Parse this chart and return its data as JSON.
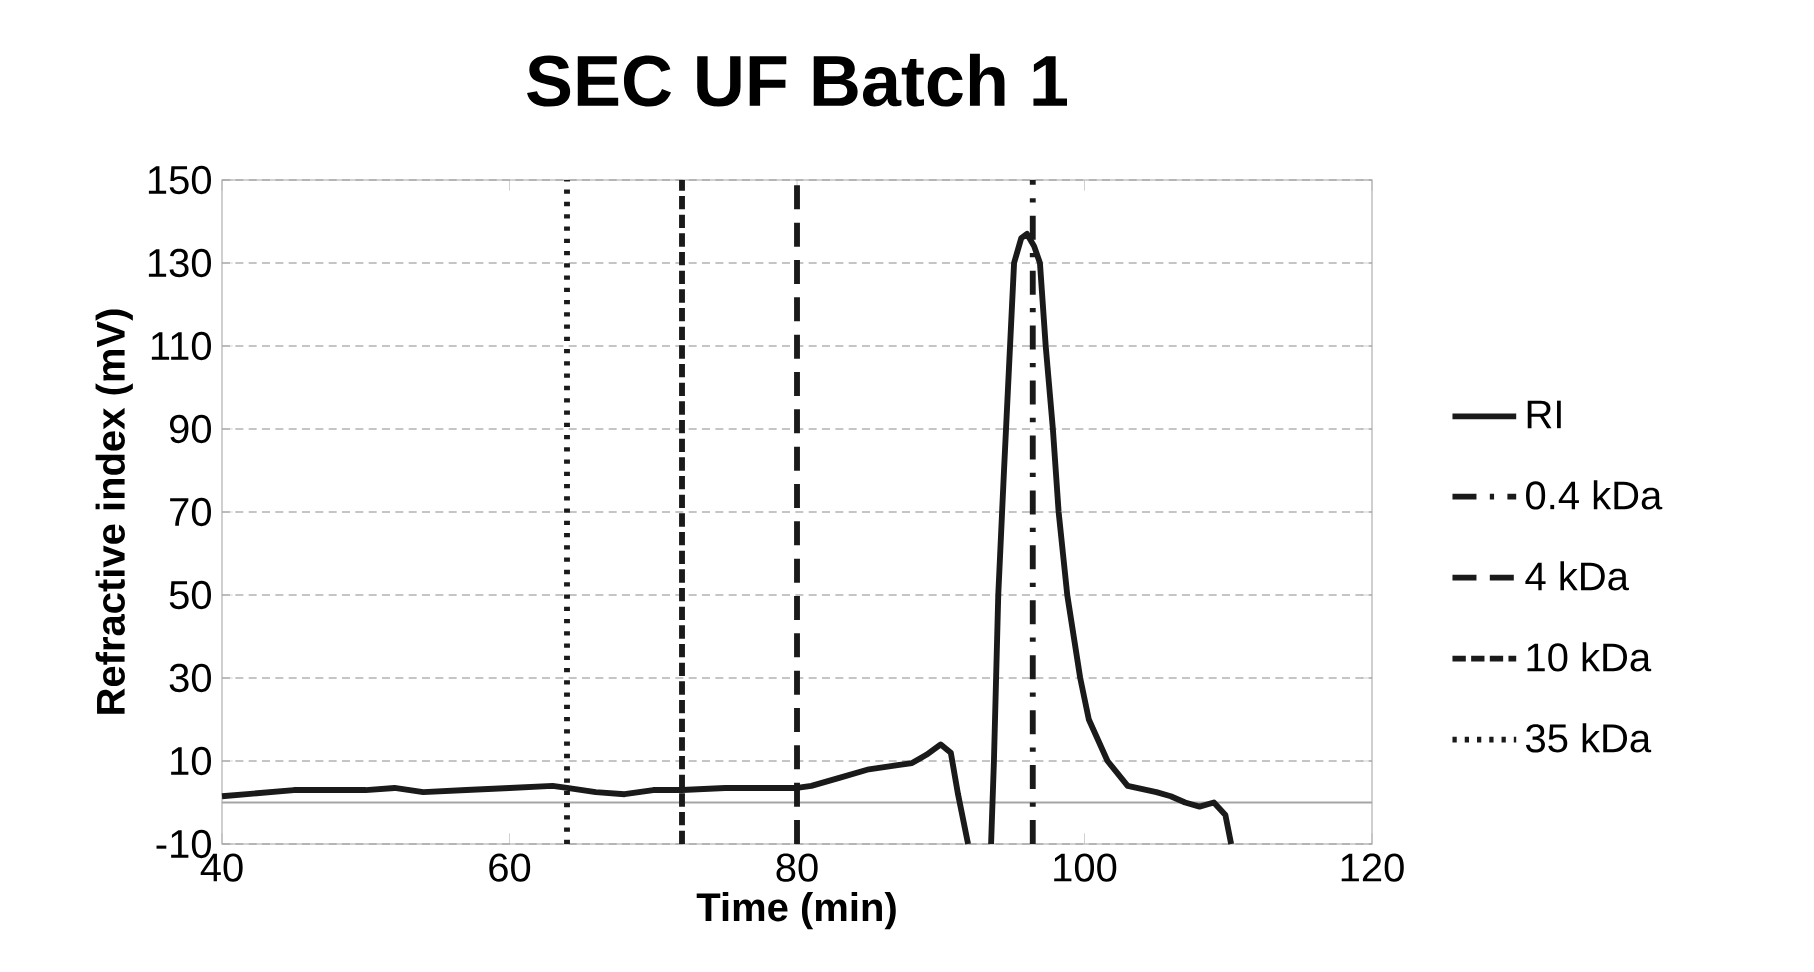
{
  "chart_data": {
    "type": "line",
    "title": "SEC UF Batch 1",
    "xlabel": "Time (min)",
    "ylabel": "Refractive index (mV)",
    "xlim": [
      40,
      120
    ],
    "ylim": [
      -10,
      150
    ],
    "xticks": [
      40,
      60,
      80,
      100,
      120
    ],
    "yticks": [
      -10,
      10,
      30,
      50,
      70,
      90,
      110,
      130,
      150
    ],
    "grid": "y",
    "legend": "right",
    "ref_lines": [
      {
        "axis": "y",
        "value": 0,
        "color": "#a6a6a6"
      }
    ],
    "series": [
      {
        "name": "RI",
        "color": "#1a1a1a",
        "line_style": "solid",
        "x": [
          40,
          45,
          50,
          52,
          54,
          57,
          60,
          63,
          64,
          66,
          68,
          70,
          72,
          75,
          78,
          80,
          81,
          83,
          85,
          87,
          88,
          89,
          90,
          90.7,
          91.2,
          91.9,
          92.5,
          93.5,
          93.7,
          94,
          94.4,
          95.1,
          95.6,
          96,
          96.5,
          96.9,
          97.3,
          97.8,
          98.2,
          98.8,
          99.7,
          100.3,
          101.6,
          103,
          105,
          106,
          107,
          108,
          109,
          109.8,
          110.2
        ],
        "values": [
          1.5,
          3,
          3,
          3.5,
          2.5,
          3,
          3.5,
          4,
          3.5,
          2.5,
          2,
          3,
          3,
          3.5,
          3.5,
          3.5,
          4,
          6,
          8,
          9,
          9.5,
          11.5,
          14,
          12,
          2,
          -10,
          null,
          -10,
          10,
          50,
          80,
          130,
          136,
          137,
          134,
          130,
          110,
          90,
          70,
          50,
          30,
          20,
          10,
          4,
          2.5,
          1.5,
          0,
          -1,
          0,
          -3,
          -10
        ]
      },
      {
        "name": "0.4 kDa",
        "color": "#1a1a1a",
        "line_style": "dashdot",
        "x": [
          96.4,
          96.4
        ],
        "values": [
          -10,
          150
        ]
      },
      {
        "name": "4 kDa",
        "color": "#1a1a1a",
        "line_style": "dashed",
        "x": [
          80,
          80
        ],
        "values": [
          -10,
          150
        ]
      },
      {
        "name": "10 kDa",
        "color": "#1a1a1a",
        "line_style": "densely dashed",
        "x": [
          72,
          72
        ],
        "values": [
          -10,
          150
        ]
      },
      {
        "name": "35 kDa",
        "color": "#1a1a1a",
        "line_style": "dotted",
        "x": [
          64,
          64
        ],
        "values": [
          -10,
          150
        ]
      }
    ]
  }
}
